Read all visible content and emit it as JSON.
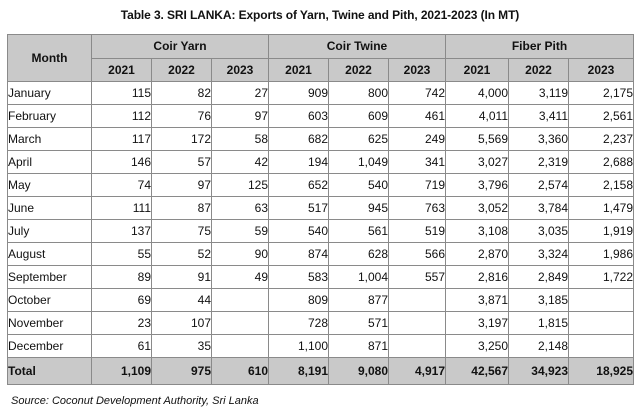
{
  "title": "Table 3. SRI LANKA: Exports of Yarn, Twine and Pith, 2021-2023 (In MT)",
  "header": {
    "month_label": "Month",
    "groups": [
      "Coir Yarn",
      "Coir Twine",
      "Fiber Pith"
    ],
    "years": [
      "2021",
      "2022",
      "2023",
      "2021",
      "2022",
      "2023",
      "2021",
      "2022",
      "2023"
    ]
  },
  "rows": [
    {
      "month": "January",
      "values": [
        "115",
        "82",
        "27",
        "909",
        "800",
        "742",
        "4,000",
        "3,119",
        "2,175"
      ]
    },
    {
      "month": "February",
      "values": [
        "112",
        "76",
        "97",
        "603",
        "609",
        "461",
        "4,011",
        "3,411",
        "2,561"
      ]
    },
    {
      "month": "March",
      "values": [
        "117",
        "172",
        "58",
        "682",
        "625",
        "249",
        "5,569",
        "3,360",
        "2,237"
      ]
    },
    {
      "month": "April",
      "values": [
        "146",
        "57",
        "42",
        "194",
        "1,049",
        "341",
        "3,027",
        "2,319",
        "2,688"
      ]
    },
    {
      "month": "May",
      "values": [
        "74",
        "97",
        "125",
        "652",
        "540",
        "719",
        "3,796",
        "2,574",
        "2,158"
      ]
    },
    {
      "month": "June",
      "values": [
        "111",
        "87",
        "63",
        "517",
        "945",
        "763",
        "3,052",
        "3,784",
        "1,479"
      ]
    },
    {
      "month": "July",
      "values": [
        "137",
        "75",
        "59",
        "540",
        "561",
        "519",
        "3,108",
        "3,035",
        "1,919"
      ]
    },
    {
      "month": "August",
      "values": [
        "55",
        "52",
        "90",
        "874",
        "628",
        "566",
        "2,870",
        "3,324",
        "1,986"
      ]
    },
    {
      "month": "September",
      "values": [
        "89",
        "91",
        "49",
        "583",
        "1,004",
        "557",
        "2,816",
        "2,849",
        "1,722"
      ]
    },
    {
      "month": "October",
      "values": [
        "69",
        "44",
        "",
        "809",
        "877",
        "",
        "3,871",
        "3,185",
        ""
      ]
    },
    {
      "month": "November",
      "values": [
        "23",
        "107",
        "",
        "728",
        "571",
        "",
        "3,197",
        "1,815",
        ""
      ]
    },
    {
      "month": "December",
      "values": [
        "61",
        "35",
        "",
        "1,100",
        "871",
        "",
        "3,250",
        "2,148",
        ""
      ]
    }
  ],
  "total": {
    "label": "Total",
    "values": [
      "1,109",
      "975",
      "610",
      "8,191",
      "9,080",
      "4,917",
      "42,567",
      "34,923",
      "18,925"
    ]
  },
  "source": "Source: Coconut Development Authority, Sri Lanka"
}
